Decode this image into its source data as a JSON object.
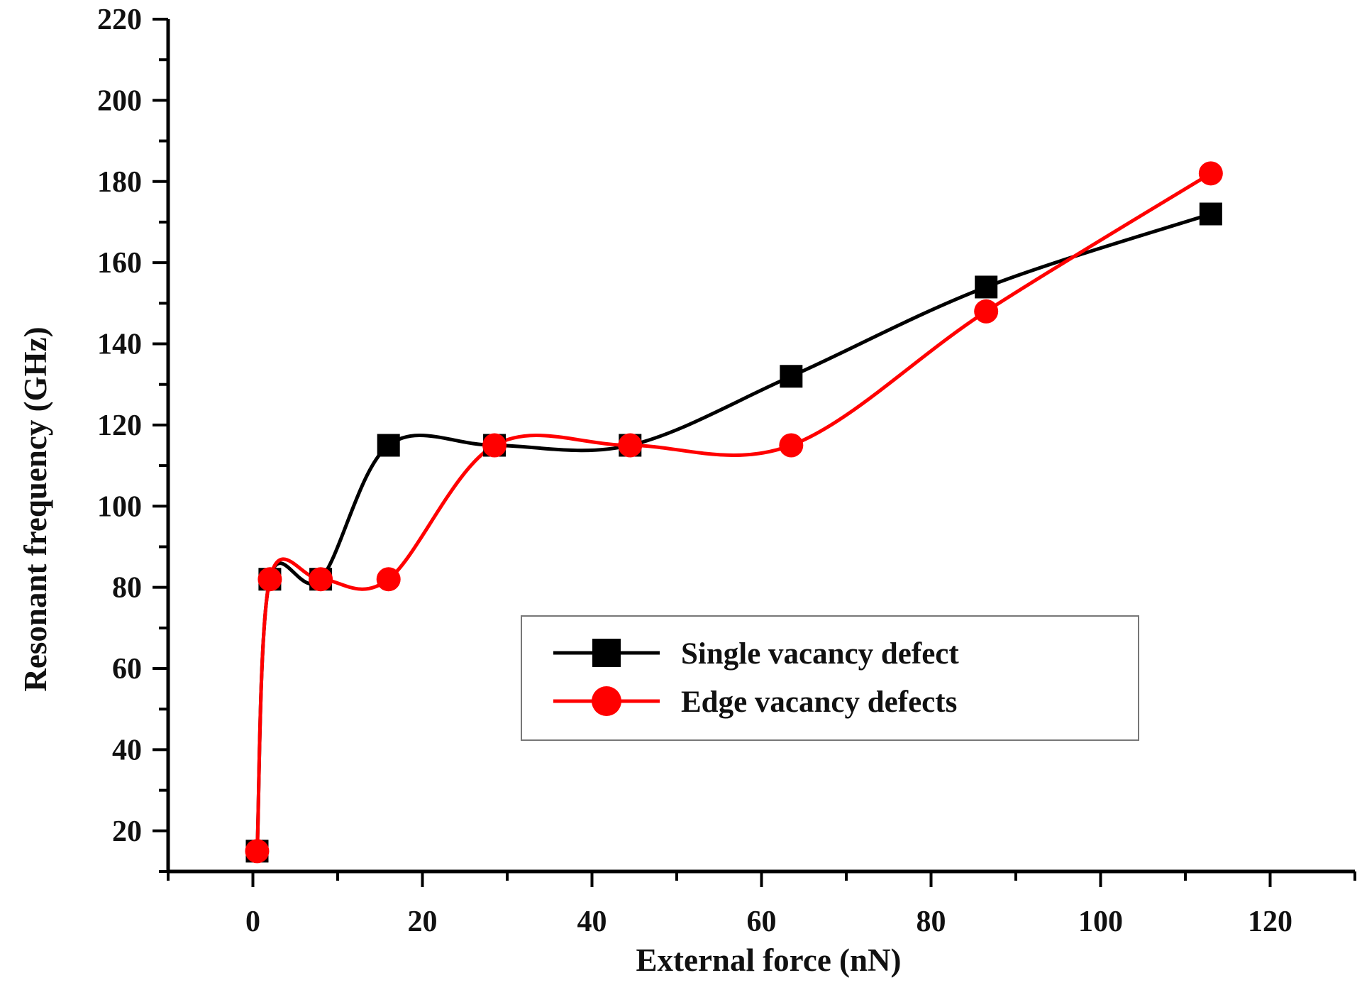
{
  "chart_data": {
    "type": "line",
    "title": "",
    "xlabel": "External force (nN)",
    "ylabel": "Resonant frequency (GHz)",
    "xlim": [
      -10,
      130
    ],
    "ylim": [
      10,
      220
    ],
    "x_ticks": [
      0,
      20,
      40,
      60,
      80,
      100,
      120
    ],
    "y_ticks": [
      20,
      40,
      60,
      80,
      100,
      120,
      140,
      160,
      180,
      200,
      220
    ],
    "x_tick_labels": [
      "0",
      "20",
      "40",
      "60",
      "80",
      "100",
      "120"
    ],
    "y_tick_labels": [
      "20",
      "40",
      "60",
      "80",
      "100",
      "120",
      "140",
      "160",
      "180",
      "200",
      "220"
    ],
    "grid": false,
    "legend_position": "center-right",
    "series": [
      {
        "name": "Single vacancy defect",
        "color": "#000000",
        "marker": "square",
        "x": [
          0.5,
          2,
          8,
          16,
          28.5,
          44.5,
          63.5,
          86.5,
          113
        ],
        "y": [
          15,
          82,
          82,
          115,
          115,
          115,
          132,
          154,
          172
        ]
      },
      {
        "name": "Edge vacancy defects",
        "color": "#ff0000",
        "marker": "circle",
        "x": [
          0.5,
          2,
          8,
          16,
          28.5,
          44.5,
          63.5,
          86.5,
          113
        ],
        "y": [
          15,
          82,
          82,
          82,
          115,
          115,
          115,
          148,
          182
        ]
      }
    ]
  }
}
